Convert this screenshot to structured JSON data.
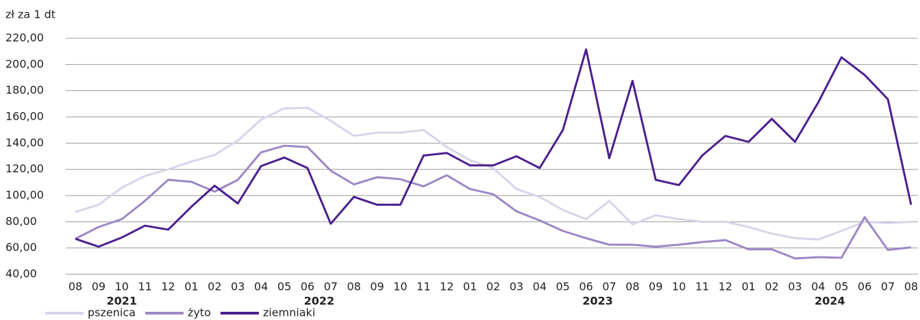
{
  "chart_data": {
    "type": "line",
    "axis_label": "zł za 1 dt",
    "categories": [
      "08",
      "09",
      "10",
      "11",
      "12",
      "01",
      "02",
      "03",
      "04",
      "05",
      "06",
      "07",
      "08",
      "09",
      "10",
      "11",
      "12",
      "01",
      "02",
      "03",
      "04",
      "05",
      "06",
      "07",
      "08",
      "09",
      "10",
      "11",
      "12",
      "01",
      "02",
      "03",
      "04",
      "05",
      "06",
      "07",
      "08"
    ],
    "year_labels": [
      "2021",
      "2022",
      "2023",
      "2024"
    ],
    "ylim": [
      40,
      220
    ],
    "yticks": [
      {
        "value": 40,
        "label": "40,00"
      },
      {
        "value": 60,
        "label": "60,00"
      },
      {
        "value": 80,
        "label": "80,00"
      },
      {
        "value": 100,
        "label": "100,00"
      },
      {
        "value": 120,
        "label": "120,00"
      },
      {
        "value": 140,
        "label": "140,00"
      },
      {
        "value": 160,
        "label": "160,00"
      },
      {
        "value": 180,
        "label": "180,00"
      },
      {
        "value": 200,
        "label": "200,00"
      },
      {
        "value": 220,
        "label": "220,00"
      }
    ],
    "grid": true,
    "legend": "bottom-left",
    "series": [
      {
        "name": "pszenica",
        "color": "#d9d3ea",
        "values": [
          87.5,
          93,
          106,
          115,
          120,
          126,
          131,
          142,
          158,
          166.5,
          167,
          157,
          145.5,
          148,
          148,
          150,
          137,
          127,
          121,
          105,
          99,
          89,
          82,
          96,
          78,
          85,
          82,
          80,
          80,
          76,
          71,
          67.5,
          66.5,
          73,
          80,
          79,
          80
        ]
      },
      {
        "name": "żyto",
        "color": "#9b87c6",
        "values": [
          67,
          76,
          82,
          96,
          112,
          110.5,
          103,
          112,
          133,
          138,
          137,
          119,
          108.5,
          114,
          112.5,
          107,
          115.5,
          105,
          101,
          88,
          81,
          73,
          67.5,
          62.5,
          62.5,
          61,
          62.5,
          64.5,
          66,
          59,
          59,
          52,
          53,
          52.5,
          83.5,
          58.5,
          60.5
        ]
      },
      {
        "name": "ziemniaki",
        "color": "#4a1f8f",
        "values": [
          67,
          61,
          68,
          77,
          74,
          91.5,
          107.5,
          94,
          122.5,
          129,
          121,
          78.5,
          99,
          93,
          93,
          130.5,
          132.5,
          123,
          123,
          130,
          121,
          150,
          211.5,
          128.5,
          187.5,
          112,
          108,
          130.5,
          145.5,
          141,
          158.5,
          141,
          171,
          205.5,
          192,
          173.5,
          93
        ]
      }
    ]
  }
}
